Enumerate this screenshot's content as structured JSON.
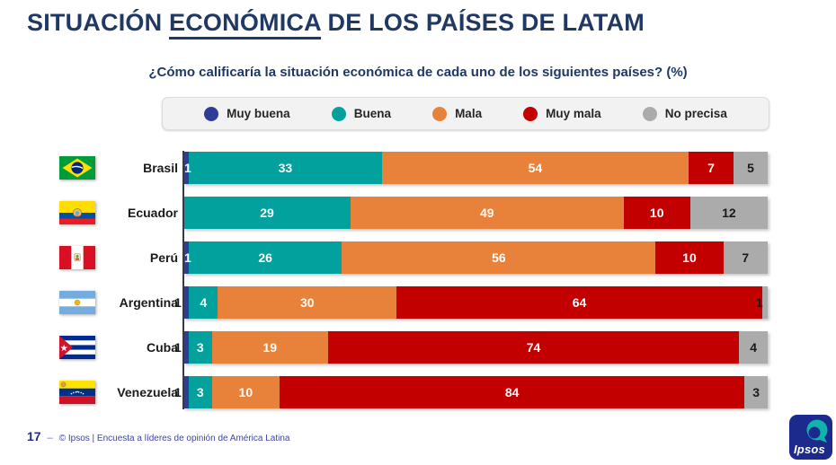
{
  "page": {
    "title_prefix": "SITUACIÓN ",
    "title_underlined": "ECONÓMICA",
    "title_suffix": " DE LOS PAÍSES DE LATAM",
    "subtitle": "¿Cómo calificaría la situación económica de cada uno de los siguientes países? (%)"
  },
  "legend": {
    "items": [
      {
        "label": "Muy buena",
        "color": "#2F3D96"
      },
      {
        "label": "Buena",
        "color": "#02A19E"
      },
      {
        "label": "Mala",
        "color": "#E8823B"
      },
      {
        "label": "Muy mala",
        "color": "#C20000"
      },
      {
        "label": "No precisa",
        "color": "#ABABAB"
      }
    ]
  },
  "chart_data": {
    "type": "bar",
    "orientation": "horizontal",
    "stacked": true,
    "unit": "%",
    "xlim": [
      0,
      100
    ],
    "title": "SITUACIÓN ECONÓMICA DE LOS PAÍSES DE LATAM",
    "question": "¿Cómo calificaría la situación económica de cada uno de los siguientes países? (%)",
    "categories": [
      "Brasil",
      "Ecuador",
      "Perú",
      "Argentina",
      "Cuba",
      "Venezuela"
    ],
    "series": [
      {
        "name": "Muy buena",
        "color": "#2F3D96",
        "label_color": "#ffffff",
        "values": [
          1,
          0,
          1,
          1,
          1,
          1
        ]
      },
      {
        "name": "Buena",
        "color": "#02A19E",
        "label_color": "#ffffff",
        "values": [
          33,
          29,
          26,
          4,
          3,
          3
        ]
      },
      {
        "name": "Mala",
        "color": "#E8823B",
        "label_color": "#ffffff",
        "values": [
          54,
          49,
          56,
          30,
          19,
          10
        ]
      },
      {
        "name": "Muy mala",
        "color": "#C20000",
        "label_color": "#ffffff",
        "values": [
          7,
          10,
          10,
          64,
          74,
          84
        ]
      },
      {
        "name": "No precisa",
        "color": "#ABABAB",
        "label_color": "#1a1a1a",
        "values": [
          5,
          12,
          7,
          1,
          4,
          3
        ]
      }
    ],
    "legend_position": "top"
  },
  "footer": {
    "page_number": "17",
    "dash": "‒",
    "source": "© Ipsos | Encuesta a líderes de opinión de América Latina",
    "logo_text": "Ipsos"
  }
}
